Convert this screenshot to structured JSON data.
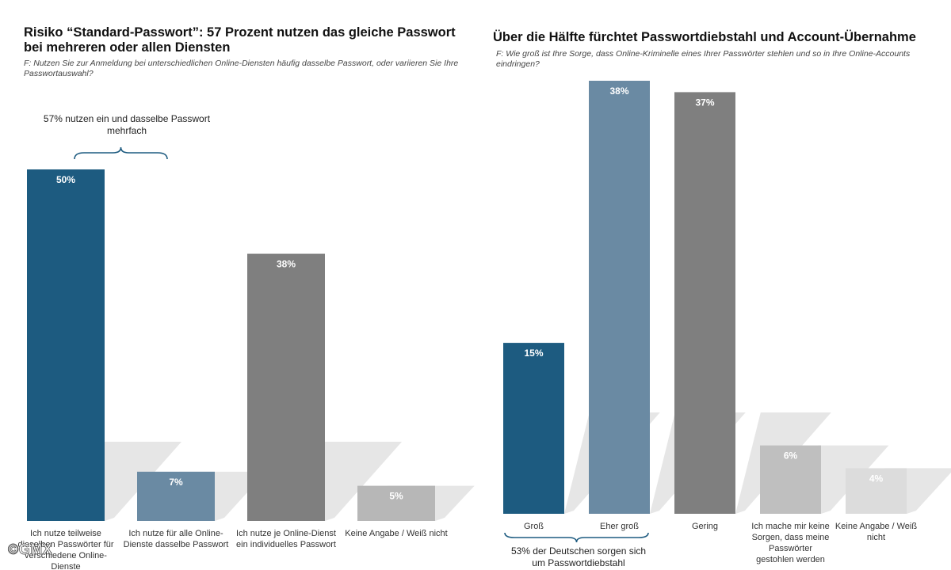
{
  "chart_data": [
    {
      "type": "bar",
      "title": "Risiko “Standard-Passwort”: 57 Prozent nutzen das gleiche Passwort bei mehreren oder allen Diensten",
      "question": "F: Nutzen Sie zur Anmeldung bei unterschiedlichen Online-Diensten häufig dasselbe Passwort, oder variieren Sie Ihre Passwortauswahl?",
      "categories": [
        [
          "Ich nutze teilweise",
          "dieselben Passwörter für",
          "verschiedene Online-",
          "Dienste"
        ],
        [
          "Ich nutze für alle Online-",
          "Dienste dasselbe Passwort"
        ],
        [
          "Ich nutze je Online-Dienst",
          "ein individuelles Passwort"
        ],
        [
          "Keine Angabe / Weiß nicht"
        ]
      ],
      "values": [
        50,
        7,
        38,
        5
      ],
      "value_labels": [
        "50%",
        "7%",
        "38%",
        "5%"
      ],
      "colors": [
        "#1d5b80",
        "#6a8aa3",
        "#7f7f7f",
        "#b7b7b7"
      ],
      "annotation": {
        "text": [
          "57% nutzen ein und dasselbe Passwort",
          "mehrfach"
        ],
        "spans_categories": [
          0,
          1
        ],
        "position": "top"
      },
      "ylim": [
        0,
        50
      ],
      "grid": false
    },
    {
      "type": "bar",
      "title": "Über die Hälfte fürchtet Passwortdiebstahl und Account-Übernahme",
      "question": "F: Wie groß ist Ihre Sorge, dass Online-Kriminelle eines Ihrer Passwörter stehlen und so in Ihre Online-Accounts eindringen?",
      "categories": [
        [
          "Groß"
        ],
        [
          "Eher groß"
        ],
        [
          "Gering"
        ],
        [
          "Ich mache mir keine",
          "Sorgen, dass meine",
          "Passwörter",
          "gestohlen werden"
        ],
        [
          "Keine Angabe / Weiß",
          "nicht"
        ]
      ],
      "values": [
        15,
        38,
        37,
        6,
        4
      ],
      "value_labels": [
        "15%",
        "38%",
        "37%",
        "6%",
        "4%"
      ],
      "colors": [
        "#1d5b80",
        "#6a8aa3",
        "#7f7f7f",
        "#bfbfbf",
        "#dcdcdc"
      ],
      "annotation": {
        "text": [
          "53% der Deutschen sorgen sich",
          "um Passwortdiebstahl"
        ],
        "spans_categories": [
          0,
          1
        ],
        "position": "bottom"
      },
      "ylim": [
        0,
        38
      ],
      "grid": false
    }
  ],
  "watermark": "©GMX"
}
